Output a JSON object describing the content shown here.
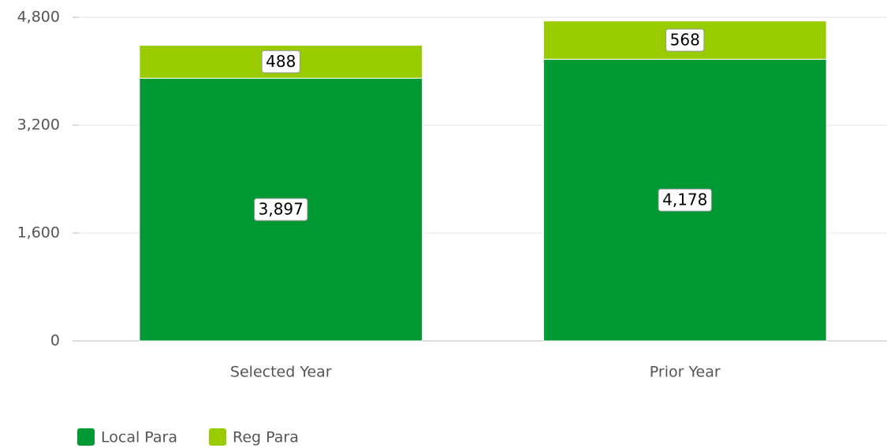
{
  "chart_data": {
    "type": "stacked_bar",
    "categories": [
      "Selected Year",
      "Prior Year"
    ],
    "series": [
      {
        "name": "Local Para",
        "color": "#009933",
        "values": [
          3897,
          4178
        ],
        "value_labels": [
          "3,897",
          "4,178"
        ]
      },
      {
        "name": "Reg Para",
        "color": "#99cc00",
        "values": [
          488,
          568
        ]
      }
    ],
    "ylim": [
      0,
      4800
    ],
    "yticks": [
      0,
      {
        "value": 1600,
        "label": "1,600"
      },
      {
        "value": 3200,
        "label": "3,200"
      },
      {
        "value": 4800,
        "label": "4,800"
      }
    ],
    "grid": true,
    "legend": "bottom-left"
  }
}
